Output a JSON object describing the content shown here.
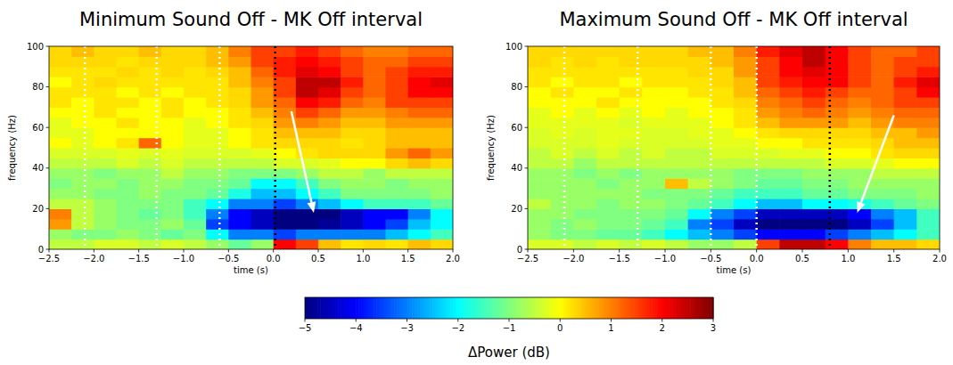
{
  "chart_data": [
    {
      "type": "heatmap",
      "title": "Minimum Sound Off - MK Off interval",
      "x_label": "time (s)",
      "y_label": "frequency (Hz)",
      "xlim": [
        -2.5,
        2.0
      ],
      "ylim": [
        0,
        100
      ],
      "xticks": [
        {
          "value": -2.5,
          "label": "−2.5"
        },
        {
          "value": -2,
          "label": "−2.0"
        },
        {
          "value": -1.5,
          "label": "−1.5"
        },
        {
          "value": -1,
          "label": "−1.0"
        },
        {
          "value": -0.5,
          "label": "−0.5"
        },
        {
          "value": 0,
          "label": "0.0"
        },
        {
          "value": 0.5,
          "label": "0.5"
        },
        {
          "value": 1,
          "label": "1.0"
        },
        {
          "value": 1.5,
          "label": "1.5"
        },
        {
          "value": 2,
          "label": "2.0"
        }
      ],
      "yticks": [
        0,
        20,
        40,
        60,
        80,
        100
      ],
      "x_bins": [
        -2.5,
        -2.25,
        -2.0,
        -1.75,
        -1.5,
        -1.25,
        -1.0,
        -0.75,
        -0.5,
        -0.25,
        0.0,
        0.25,
        0.5,
        0.75,
        1.0,
        1.25,
        1.5,
        1.75,
        2.0
      ],
      "y_bins": [
        0,
        5,
        10,
        15,
        20,
        25,
        30,
        35,
        40,
        45,
        50,
        55,
        60,
        65,
        70,
        75,
        80,
        85,
        90,
        95,
        100
      ],
      "values": [
        [
          -0.5,
          -0.5,
          -0.3,
          -0.3,
          -0.5,
          -0.3,
          -0.5,
          -0.8,
          -1.2,
          -0.8,
          2.0,
          1.5,
          0.5,
          0.2,
          0.3,
          0.2,
          0.5,
          0.3
        ],
        [
          -0.8,
          -1.0,
          -1.0,
          -0.8,
          -1.0,
          -1.2,
          -1.0,
          -2.0,
          -3.0,
          -3.0,
          -3.5,
          -3.0,
          -3.0,
          -3.0,
          -3.0,
          -2.5,
          -2.0,
          -1.5
        ],
        [
          0.8,
          -0.5,
          -0.8,
          -1.0,
          -1.0,
          -0.8,
          -1.2,
          -3.5,
          -4.0,
          -4.5,
          -5.0,
          -5.0,
          -4.8,
          -4.5,
          -4.0,
          -3.5,
          -2.5,
          -2.0
        ],
        [
          1.0,
          -0.5,
          -0.8,
          -1.0,
          -1.2,
          -1.0,
          -1.5,
          -3.0,
          -4.0,
          -4.5,
          -5.0,
          -5.0,
          -5.0,
          -4.5,
          -4.0,
          -4.0,
          -3.0,
          -2.0
        ],
        [
          -0.5,
          -0.5,
          -0.8,
          -1.0,
          -1.0,
          -1.0,
          -1.5,
          -2.0,
          -3.0,
          -3.0,
          -3.5,
          -3.0,
          -2.5,
          -2.0,
          -1.5,
          -1.5,
          -1.5,
          -1.2
        ],
        [
          -0.8,
          -0.8,
          -1.0,
          -1.0,
          -0.8,
          -1.0,
          -1.0,
          -1.2,
          -1.8,
          -2.5,
          -2.5,
          -2.0,
          -1.5,
          -1.0,
          -1.0,
          -1.0,
          -1.0,
          -0.8
        ],
        [
          -1.0,
          -0.8,
          -0.8,
          -1.0,
          -0.8,
          -0.8,
          -1.0,
          -1.0,
          -1.2,
          -2.0,
          -2.0,
          -1.5,
          -1.0,
          -0.8,
          -0.8,
          -1.0,
          -0.8,
          -0.8
        ],
        [
          -0.8,
          -0.8,
          -1.0,
          -0.8,
          -0.8,
          -0.5,
          -0.8,
          -0.8,
          -1.0,
          -1.0,
          -1.0,
          -0.8,
          -0.5,
          -0.5,
          -0.8,
          -0.5,
          -0.5,
          -0.5
        ],
        [
          -0.5,
          -0.5,
          -0.5,
          -0.3,
          -0.5,
          -0.3,
          -0.5,
          -0.5,
          -0.5,
          -0.5,
          -0.3,
          -0.3,
          -0.2,
          0.0,
          0.0,
          0.3,
          0.5,
          0.3
        ],
        [
          -0.3,
          -0.3,
          -0.3,
          -0.2,
          -0.3,
          -0.2,
          -0.3,
          -0.3,
          -0.3,
          -0.2,
          0.0,
          0.2,
          0.3,
          0.3,
          0.3,
          0.8,
          1.2,
          0.8
        ],
        [
          0.0,
          -0.2,
          0.0,
          0.2,
          1.2,
          0.0,
          -0.2,
          -0.2,
          0.0,
          0.2,
          0.3,
          0.3,
          0.3,
          0.2,
          0.3,
          0.5,
          0.5,
          0.5
        ],
        [
          -0.2,
          -0.2,
          0.0,
          0.0,
          0.0,
          0.0,
          -0.2,
          -0.2,
          0.0,
          0.2,
          0.5,
          0.5,
          0.5,
          0.3,
          0.3,
          0.5,
          0.5,
          0.5
        ],
        [
          -0.2,
          0.0,
          0.0,
          0.2,
          0.0,
          0.0,
          -0.2,
          0.0,
          0.2,
          0.3,
          0.8,
          1.0,
          0.8,
          0.5,
          0.5,
          0.8,
          0.8,
          0.8
        ],
        [
          0.0,
          0.0,
          0.2,
          0.0,
          0.0,
          0.2,
          0.0,
          0.0,
          0.2,
          0.5,
          1.0,
          1.5,
          1.2,
          0.8,
          0.8,
          1.0,
          1.2,
          1.2
        ],
        [
          0.2,
          0.0,
          0.2,
          0.2,
          0.0,
          0.2,
          0.0,
          0.2,
          0.3,
          0.8,
          1.2,
          2.0,
          1.8,
          1.2,
          1.0,
          1.5,
          1.5,
          1.5
        ],
        [
          0.2,
          0.2,
          0.2,
          0.0,
          0.2,
          0.0,
          0.2,
          0.2,
          0.3,
          0.8,
          1.5,
          2.5,
          2.2,
          1.5,
          1.2,
          1.5,
          2.0,
          2.0
        ],
        [
          0.0,
          0.2,
          0.3,
          0.2,
          0.2,
          0.2,
          0.2,
          0.2,
          0.5,
          1.0,
          1.5,
          2.5,
          2.5,
          1.8,
          1.2,
          1.5,
          2.0,
          2.2
        ],
        [
          0.2,
          0.2,
          0.2,
          0.3,
          0.2,
          0.3,
          0.2,
          0.3,
          0.5,
          1.2,
          1.8,
          2.2,
          2.0,
          1.5,
          1.2,
          1.5,
          1.8,
          1.8
        ],
        [
          0.3,
          0.3,
          0.3,
          0.2,
          0.3,
          0.3,
          0.3,
          0.5,
          0.8,
          1.5,
          1.8,
          2.0,
          1.8,
          1.5,
          1.2,
          1.2,
          1.5,
          1.5
        ],
        [
          0.3,
          0.5,
          0.3,
          0.3,
          0.5,
          0.3,
          0.3,
          0.5,
          1.0,
          1.5,
          1.5,
          1.8,
          1.5,
          1.2,
          1.0,
          1.0,
          1.2,
          1.2
        ]
      ],
      "vlines": [
        {
          "x": -2.1,
          "color": "white"
        },
        {
          "x": -1.3,
          "color": "white"
        },
        {
          "x": -0.6,
          "color": "white"
        },
        {
          "x": 0.02,
          "color": "black"
        }
      ],
      "arrows": [
        {
          "x": [
            0.2,
            0.45
          ],
          "y": [
            68,
            18
          ]
        }
      ]
    },
    {
      "type": "heatmap",
      "title": "Maximum Sound Off - MK Off interval",
      "x_label": "time (s)",
      "y_label": "frequency (Hz)",
      "xlim": [
        -2.5,
        2.0
      ],
      "ylim": [
        0,
        100
      ],
      "xticks": [
        {
          "value": -2.5,
          "label": "−2.5"
        },
        {
          "value": -2,
          "label": "−2.0"
        },
        {
          "value": -1.5,
          "label": "−1.5"
        },
        {
          "value": -1,
          "label": "−1.0"
        },
        {
          "value": -0.5,
          "label": "−0.5"
        },
        {
          "value": 0,
          "label": "0.0"
        },
        {
          "value": 0.5,
          "label": "0.5"
        },
        {
          "value": 1,
          "label": "1.0"
        },
        {
          "value": 1.5,
          "label": "1.5"
        },
        {
          "value": 2,
          "label": "2.0"
        }
      ],
      "yticks": [
        0,
        20,
        40,
        60,
        80,
        100
      ],
      "x_bins": [
        -2.5,
        -2.25,
        -2.0,
        -1.75,
        -1.5,
        -1.25,
        -1.0,
        -0.75,
        -0.5,
        -0.25,
        0.0,
        0.25,
        0.5,
        0.75,
        1.0,
        1.25,
        1.5,
        1.75,
        2.0
      ],
      "y_bins": [
        0,
        5,
        10,
        15,
        20,
        25,
        30,
        35,
        40,
        45,
        50,
        55,
        60,
        65,
        70,
        75,
        80,
        85,
        90,
        95,
        100
      ],
      "values": [
        [
          -0.3,
          -0.3,
          -0.5,
          -0.3,
          -0.5,
          -0.3,
          -0.5,
          -0.8,
          -0.8,
          -0.5,
          1.5,
          2.5,
          2.5,
          2.0,
          1.0,
          0.5,
          0.5,
          0.3
        ],
        [
          -0.8,
          -1.0,
          -1.0,
          -1.2,
          -1.2,
          -1.5,
          -2.0,
          -2.5,
          -3.0,
          -3.5,
          -4.0,
          -4.0,
          -4.0,
          -3.5,
          -3.0,
          -2.5,
          -2.0,
          -1.5
        ],
        [
          -0.8,
          -1.0,
          -0.8,
          -1.0,
          -1.0,
          -1.2,
          -1.5,
          -3.0,
          -3.5,
          -4.5,
          -5.0,
          -5.0,
          -5.0,
          -5.0,
          -4.5,
          -3.5,
          -2.5,
          -1.5
        ],
        [
          -0.8,
          -0.8,
          -1.0,
          -1.0,
          -1.0,
          -1.0,
          -1.2,
          -2.0,
          -3.0,
          -3.5,
          -4.5,
          -4.5,
          -4.5,
          -4.5,
          -4.0,
          -3.0,
          -2.5,
          -1.5
        ],
        [
          -0.5,
          -0.8,
          -0.8,
          -1.0,
          -0.8,
          -0.8,
          -1.0,
          -1.2,
          -1.5,
          -2.0,
          -2.5,
          -2.5,
          -2.0,
          -2.0,
          -1.8,
          -1.5,
          -1.2,
          -1.0
        ],
        [
          -0.8,
          -0.8,
          -0.8,
          -0.8,
          -0.8,
          -1.0,
          -1.0,
          -1.0,
          -1.2,
          -1.5,
          -1.5,
          -1.5,
          -1.2,
          -1.2,
          -1.0,
          -1.0,
          -1.0,
          -0.8
        ],
        [
          -0.8,
          -0.8,
          -0.8,
          -1.0,
          -0.8,
          -0.8,
          0.5,
          -0.5,
          -0.8,
          -1.0,
          -1.2,
          -1.2,
          -1.0,
          -1.0,
          -0.8,
          -0.8,
          -0.8,
          -0.8
        ],
        [
          -0.8,
          -0.8,
          -1.0,
          -0.8,
          -1.0,
          -0.8,
          -0.8,
          -0.8,
          -0.8,
          -1.0,
          -1.0,
          -1.0,
          -0.8,
          -0.8,
          -0.8,
          -0.5,
          -0.5,
          -0.5
        ],
        [
          -0.5,
          -0.5,
          -0.8,
          -0.5,
          -0.5,
          -0.5,
          -0.5,
          -0.5,
          -0.5,
          -0.5,
          -0.5,
          -0.5,
          -0.5,
          -0.3,
          -0.3,
          -0.2,
          0.0,
          0.0
        ],
        [
          -0.5,
          -0.3,
          -0.5,
          -0.3,
          -0.5,
          -0.3,
          -0.5,
          -0.5,
          -0.3,
          -0.3,
          -0.3,
          -0.2,
          -0.2,
          0.0,
          0.0,
          0.2,
          0.3,
          0.3
        ],
        [
          -0.3,
          -0.3,
          -0.3,
          -0.2,
          -0.3,
          -0.3,
          -0.3,
          -0.3,
          -0.2,
          -0.2,
          0.0,
          0.0,
          0.2,
          0.2,
          0.2,
          0.3,
          0.5,
          0.5
        ],
        [
          -0.3,
          -0.2,
          -0.3,
          -0.2,
          -0.2,
          -0.3,
          -0.3,
          -0.2,
          -0.2,
          0.0,
          0.2,
          0.3,
          0.3,
          0.3,
          0.3,
          0.5,
          0.5,
          0.8
        ],
        [
          -0.2,
          -0.2,
          -0.2,
          -0.2,
          -0.3,
          -0.2,
          -0.2,
          -0.2,
          0.0,
          0.2,
          0.5,
          0.8,
          0.8,
          0.8,
          0.5,
          0.8,
          1.0,
          1.0
        ],
        [
          -0.2,
          0.0,
          -0.2,
          0.0,
          -0.2,
          0.0,
          -0.2,
          0.0,
          0.0,
          0.2,
          0.8,
          1.0,
          1.2,
          1.0,
          0.8,
          1.0,
          1.2,
          1.2
        ],
        [
          0.0,
          0.0,
          0.0,
          0.2,
          0.0,
          0.0,
          0.0,
          0.0,
          0.2,
          0.3,
          1.0,
          1.2,
          1.5,
          1.2,
          1.0,
          1.2,
          1.5,
          1.5
        ],
        [
          0.0,
          0.2,
          0.0,
          0.0,
          0.2,
          0.0,
          0.0,
          0.2,
          0.2,
          0.5,
          1.2,
          1.5,
          1.8,
          1.5,
          1.2,
          1.2,
          1.5,
          2.0
        ],
        [
          0.2,
          0.0,
          0.2,
          0.2,
          0.0,
          0.2,
          0.2,
          0.2,
          0.3,
          0.5,
          1.5,
          1.8,
          2.0,
          2.0,
          1.5,
          1.2,
          1.8,
          2.2
        ],
        [
          0.2,
          0.2,
          0.2,
          0.2,
          0.2,
          0.2,
          0.2,
          0.3,
          0.3,
          0.8,
          1.5,
          2.0,
          2.2,
          2.0,
          1.5,
          1.2,
          1.5,
          1.8
        ],
        [
          0.3,
          0.2,
          0.3,
          0.2,
          0.3,
          0.3,
          0.3,
          0.3,
          0.5,
          0.8,
          1.5,
          2.0,
          2.5,
          2.0,
          1.5,
          1.2,
          1.5,
          1.5
        ],
        [
          0.3,
          0.3,
          0.3,
          0.3,
          0.3,
          0.3,
          0.3,
          0.5,
          0.5,
          1.0,
          1.8,
          2.2,
          2.5,
          2.0,
          1.5,
          1.2,
          1.2,
          1.5
        ]
      ],
      "vlines": [
        {
          "x": -2.1,
          "color": "white"
        },
        {
          "x": -1.3,
          "color": "white"
        },
        {
          "x": -0.5,
          "color": "white"
        },
        {
          "x": 0.0,
          "color": "white"
        },
        {
          "x": 0.8,
          "color": "black"
        }
      ],
      "arrows": [
        {
          "x": [
            1.5,
            1.1
          ],
          "y": [
            66,
            18
          ]
        }
      ]
    },
    {
      "type": "colorbar",
      "label": "ΔPower (dB)",
      "range": [
        -5,
        3
      ],
      "ticks": [
        {
          "value": -5,
          "label": "−5"
        },
        {
          "value": -4,
          "label": "−4"
        },
        {
          "value": -3,
          "label": "−3"
        },
        {
          "value": -2,
          "label": "−2"
        },
        {
          "value": -1,
          "label": "−1"
        },
        0,
        1,
        2,
        3
      ]
    }
  ]
}
